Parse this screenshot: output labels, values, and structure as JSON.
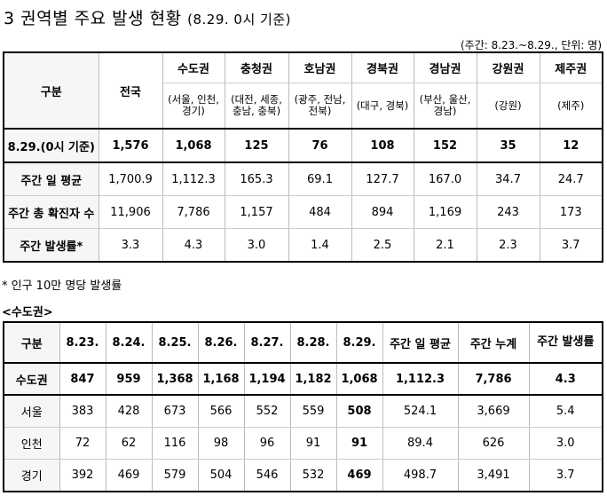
{
  "title": {
    "main": "3 권역별 주요 발생 현황",
    "sub": "(8.29. 0시 기준)"
  },
  "unit_note": "(주간: 8.23.~8.29., 단위: 명)",
  "table1": {
    "corner": "구분",
    "national": "전국",
    "regions": [
      {
        "name": "수도권",
        "sub": "(서울, 인천, 경기)"
      },
      {
        "name": "충청권",
        "sub": "(대전, 세종, 충남, 충북)"
      },
      {
        "name": "호남권",
        "sub": "(광주, 전남, 전북)"
      },
      {
        "name": "경북권",
        "sub": "(대구, 경북)"
      },
      {
        "name": "경남권",
        "sub": "(부산, 울산, 경남)"
      },
      {
        "name": "강원권",
        "sub": "(강원)"
      },
      {
        "name": "제주권",
        "sub": "(제주)"
      }
    ],
    "rows": [
      {
        "label": "8.29.(0시 기준)",
        "values": [
          "1,576",
          "1,068",
          "125",
          "76",
          "108",
          "152",
          "35",
          "12"
        ]
      },
      {
        "label": "주간 일 평균",
        "values": [
          "1,700.9",
          "1,112.3",
          "165.3",
          "69.1",
          "127.7",
          "167.0",
          "34.7",
          "24.7"
        ]
      },
      {
        "label": "주간 총 확진자 수",
        "values": [
          "11,906",
          "7,786",
          "1,157",
          "484",
          "894",
          "1,169",
          "243",
          "173"
        ]
      },
      {
        "label": "주간 발생률*",
        "values": [
          "3.3",
          "4.3",
          "3.0",
          "1.4",
          "2.5",
          "2.1",
          "2.3",
          "3.7"
        ]
      }
    ]
  },
  "footnote": "* 인구 10만 명당 발생률",
  "region_label": "<수도권>",
  "table2": {
    "headers": [
      "구분",
      "8.23.",
      "8.24.",
      "8.25.",
      "8.26.",
      "8.27.",
      "8.28.",
      "8.29.",
      "주간 일 평균",
      "주간 누계",
      "주간 발생률"
    ],
    "rows": [
      {
        "label": "수도권",
        "values": [
          "847",
          "959",
          "1,368",
          "1,168",
          "1,194",
          "1,182",
          "1,068",
          "1,112.3",
          "7,786",
          "4.3"
        ]
      },
      {
        "label": "서울",
        "values": [
          "383",
          "428",
          "673",
          "566",
          "552",
          "559",
          "508",
          "524.1",
          "3,669",
          "5.4"
        ]
      },
      {
        "label": "인천",
        "values": [
          "72",
          "62",
          "116",
          "98",
          "96",
          "91",
          "91",
          "89.4",
          "626",
          "3.0"
        ]
      },
      {
        "label": "경기",
        "values": [
          "392",
          "469",
          "579",
          "504",
          "546",
          "532",
          "469",
          "498.7",
          "3,491",
          "3.7"
        ]
      }
    ]
  }
}
